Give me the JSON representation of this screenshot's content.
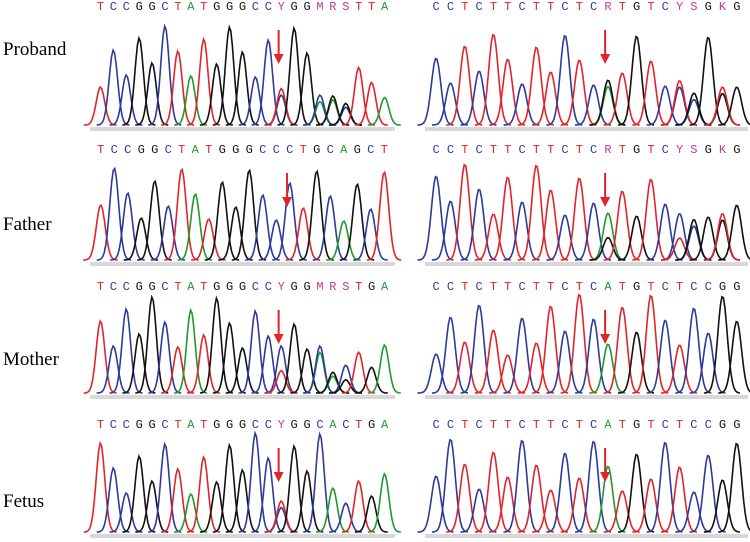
{
  "rows": [
    {
      "label": "Proband",
      "left": "TCCGGCTATGGGCCYGGMRSTTA",
      "right": "CCTCTTCTTCTCRTGTCYSGKG"
    },
    {
      "label": "Father",
      "left": "TCCGGCTATGGGCCCTGCAGCT",
      "right": "CCTCTTCTTCTCRTGTCYSGKG"
    },
    {
      "label": "Mother",
      "left": "TCCGGCTATGGGCCYGGMRSTGA",
      "right": "CCTCTTCTTCTCATGTCTCCGG"
    },
    {
      "label": "Fetus",
      "left": "TCCGGCTATGGGCCYGGCACTGA",
      "right": "CCTCTTCTTCTCATGTCTCCGG"
    }
  ]
}
